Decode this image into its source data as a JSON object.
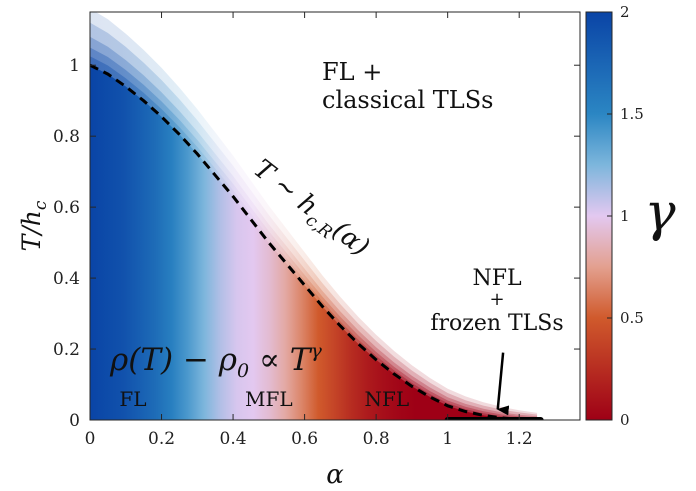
{
  "chart_data": {
    "type": "heatmap",
    "title": "",
    "xlabel": "α",
    "ylabel": "T/h_c",
    "xlim": [
      0,
      1.37
    ],
    "ylim": [
      0,
      1.15
    ],
    "x_ticks": [
      "0",
      "0.2",
      "0.4",
      "0.6",
      "0.8",
      "1",
      "1.2"
    ],
    "x_tick_values": [
      0,
      0.2,
      0.4,
      0.6,
      0.8,
      1.0,
      1.2
    ],
    "y_ticks": [
      "0",
      "0.2",
      "0.4",
      "0.6",
      "0.8",
      "1"
    ],
    "y_tick_values": [
      0,
      0.2,
      0.4,
      0.6,
      0.8,
      1.0
    ],
    "colormap": {
      "label": "γ",
      "range": [
        0,
        2
      ],
      "ticks": [
        "0",
        "0.5",
        "1",
        "1.5",
        "2"
      ],
      "tick_values": [
        0,
        0.5,
        1,
        1.5,
        2
      ],
      "colors": {
        "0": "#9e0016",
        "0.5": "#d05a2c",
        "0.75": "#e3a08f",
        "1": "#e3c8f0",
        "1.25": "#7db6dc",
        "1.5": "#2b86c3",
        "2": "#0a44a6"
      }
    },
    "gamma_vs_alpha": {
      "x": [
        0,
        0.05,
        0.1,
        0.15,
        0.2,
        0.25,
        0.3,
        0.35,
        0.4,
        0.45,
        0.5,
        0.55,
        0.6,
        0.65,
        0.7,
        0.75,
        0.8,
        0.85,
        0.9,
        0.95,
        1.0,
        1.05,
        1.1,
        1.15,
        1.2,
        1.25
      ],
      "gamma": [
        2.0,
        1.95,
        1.9,
        1.8,
        1.7,
        1.55,
        1.4,
        1.25,
        1.12,
        1.03,
        1.0,
        0.92,
        0.8,
        0.65,
        0.5,
        0.38,
        0.25,
        0.15,
        0.08,
        0.03,
        0.0,
        0.0,
        0.0,
        0.0,
        0.0,
        0.0
      ]
    },
    "series": [
      {
        "name": "T ~ h_{c,R}(α)",
        "style": "dashed",
        "color": "#000000",
        "x": [
          0,
          0.05,
          0.1,
          0.15,
          0.2,
          0.25,
          0.3,
          0.35,
          0.4,
          0.45,
          0.5,
          0.55,
          0.6,
          0.65,
          0.7,
          0.75,
          0.8,
          0.85,
          0.9,
          0.95,
          1.0,
          1.05,
          1.1,
          1.15,
          1.2,
          1.25
        ],
        "y": [
          1.0,
          0.975,
          0.94,
          0.9,
          0.855,
          0.805,
          0.75,
          0.69,
          0.63,
          0.565,
          0.5,
          0.44,
          0.38,
          0.32,
          0.265,
          0.215,
          0.17,
          0.13,
          0.095,
          0.065,
          0.04,
          0.024,
          0.013,
          0.006,
          0.002,
          0.0
        ]
      },
      {
        "name": "frozen TLSs segment",
        "style": "solid-thick",
        "color": "#000000",
        "x": [
          1.0,
          1.26
        ],
        "y": [
          0,
          0
        ]
      }
    ],
    "annotations": {
      "fl_classical": [
        "FL +",
        "classical TLSs"
      ],
      "curve_label": "T ∼ h_{c,R}(α)",
      "nfl_frozen": [
        "NFL",
        "+",
        "frozen TLSs"
      ],
      "arrow": {
        "from": [
          1.155,
          0.19
        ],
        "to": [
          1.14,
          0.03
        ]
      },
      "formula": "ρ(T) − ρ0 ∝ T^γ",
      "regions": [
        {
          "text": "FL",
          "x": 0.12
        },
        {
          "text": "MFL",
          "x": 0.5
        },
        {
          "text": "NFL",
          "x": 0.83
        }
      ]
    }
  }
}
